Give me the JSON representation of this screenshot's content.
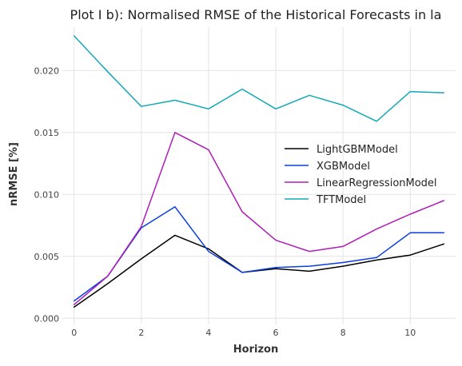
{
  "chart_data": {
    "type": "line",
    "title": "Plot I b): Normalised RMSE of the Historical Forecasts in la",
    "xlabel": "Horizon",
    "ylabel": "nRMSE [%]",
    "xlim": [
      -0.35,
      11.35
    ],
    "ylim": [
      -0.0005,
      0.0235
    ],
    "xticks": [
      0,
      2,
      4,
      6,
      8,
      10
    ],
    "xtick_labels": [
      "0",
      "2",
      "4",
      "6",
      "8",
      "10"
    ],
    "yticks": [
      0.0,
      0.005,
      0.01,
      0.015,
      0.02
    ],
    "ytick_labels": [
      "0.000",
      "0.005",
      "0.010",
      "0.015",
      "0.020"
    ],
    "grid": true,
    "legend_position": "center-right",
    "x": [
      0,
      1,
      2,
      3,
      4,
      5,
      6,
      7,
      8,
      9,
      10,
      11
    ],
    "series": [
      {
        "name": "LightGBMModel",
        "color": "#000000",
        "values": [
          0.0009,
          0.0028,
          0.0048,
          0.0067,
          0.0056,
          0.0037,
          0.004,
          0.0038,
          0.0042,
          0.0047,
          0.0051,
          0.006
        ]
      },
      {
        "name": "XGBModel",
        "color": "#0a3fe0",
        "values": [
          0.0014,
          0.0034,
          0.0073,
          0.009,
          0.0054,
          0.0037,
          0.0041,
          0.0042,
          0.0045,
          0.0049,
          0.0069,
          0.0069
        ]
      },
      {
        "name": "LinearRegressionModel",
        "color": "#b01cb8",
        "values": [
          0.0011,
          0.0034,
          0.0074,
          0.015,
          0.0136,
          0.0086,
          0.0063,
          0.0054,
          0.0058,
          0.0072,
          0.0084,
          0.0095
        ]
      },
      {
        "name": "TFTModel",
        "color": "#12a8b8",
        "values": [
          0.0228,
          0.0199,
          0.0171,
          0.0176,
          0.0169,
          0.0185,
          0.0169,
          0.018,
          0.0172,
          0.0159,
          0.0183,
          0.0182
        ]
      }
    ]
  }
}
